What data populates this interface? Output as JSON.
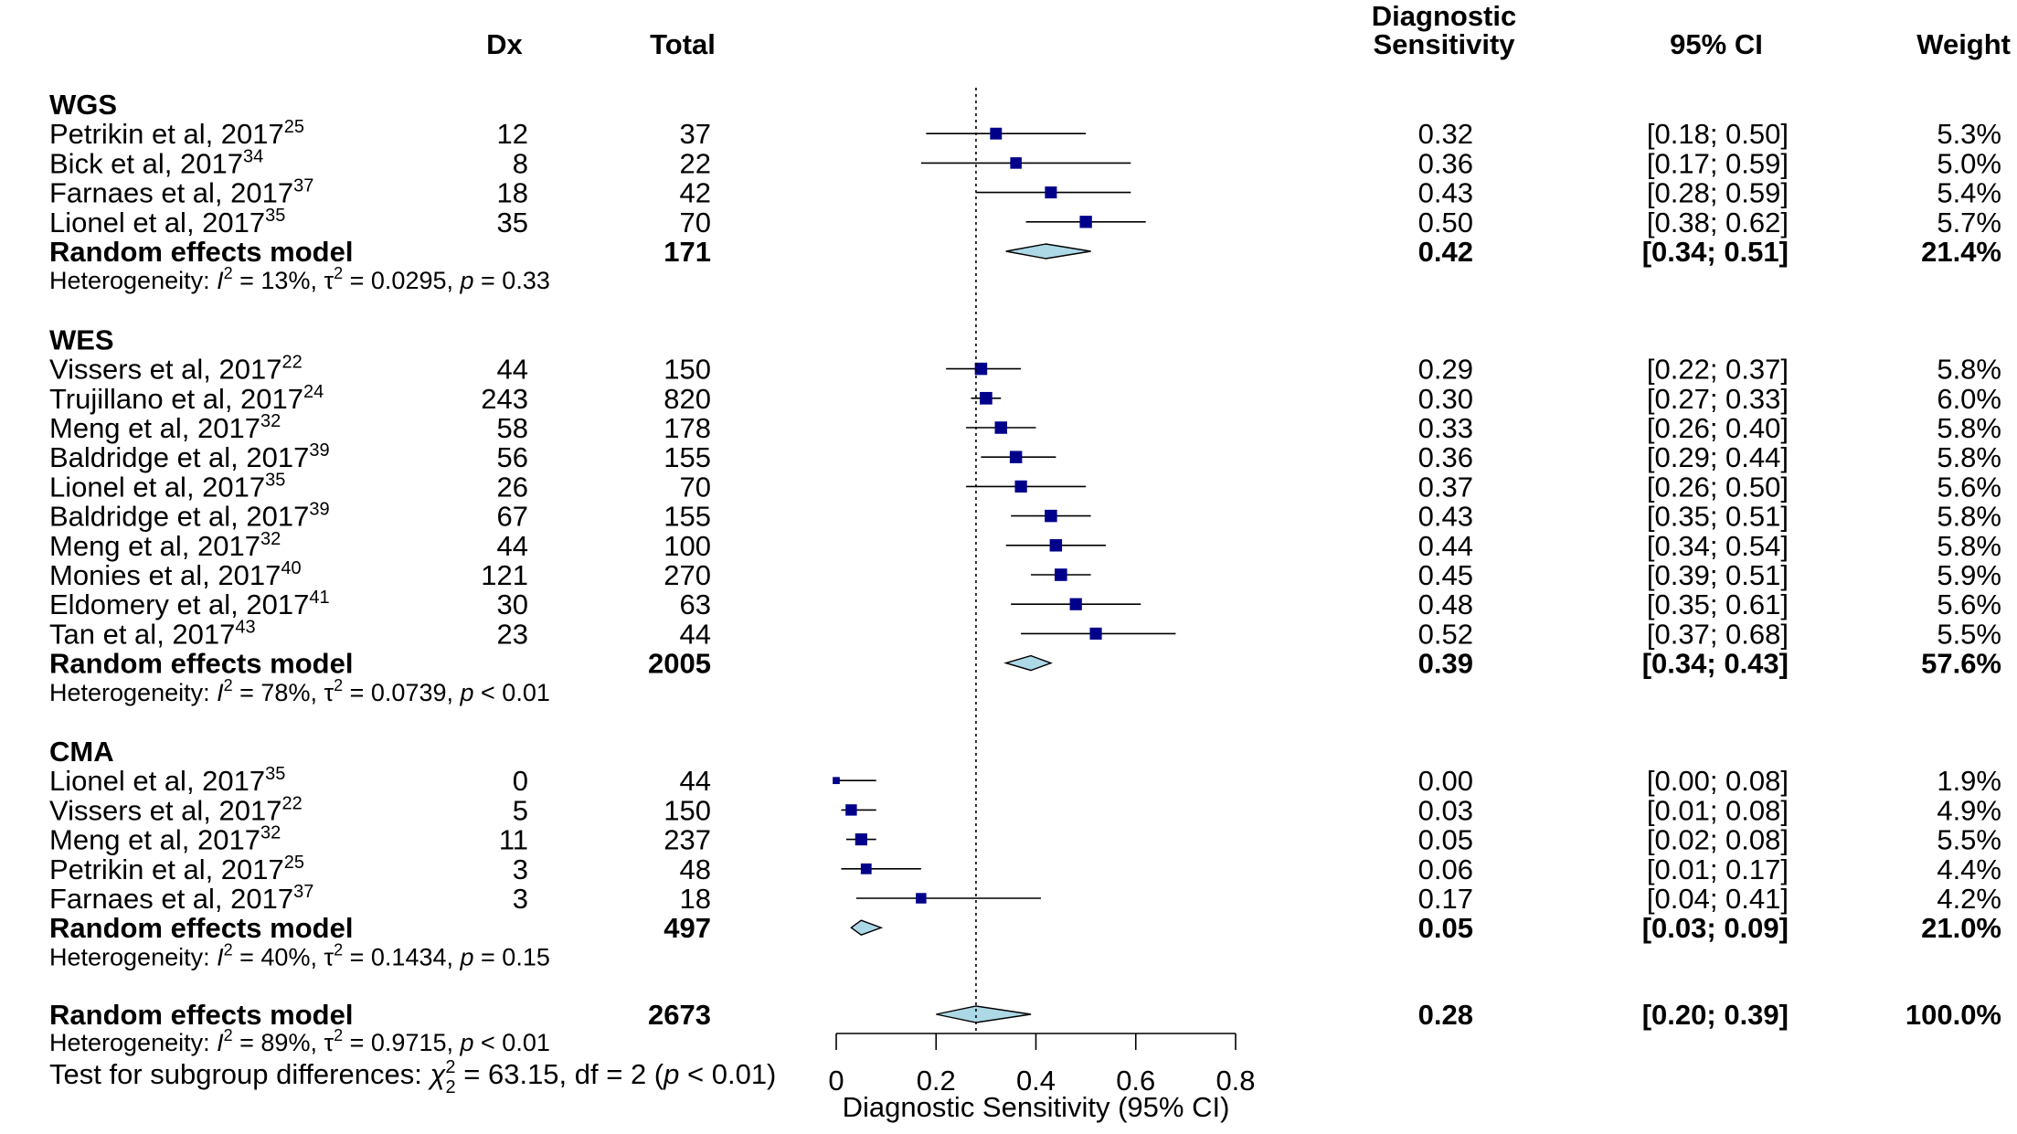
{
  "chart_data": {
    "type": "forest",
    "columns": {
      "dx": "Dx",
      "total": "Total",
      "estimate_line1": "Diagnostic",
      "estimate_line2": "Sensitivity",
      "ci": "95% CI",
      "weight": "Weight"
    },
    "xaxis": {
      "label": "Diagnostic Sensitivity (95% CI)",
      "ticks": [
        "0",
        "0.2",
        "0.4",
        "0.6",
        "0.8"
      ],
      "range": [
        0,
        0.8
      ]
    },
    "reference_value": 0.28,
    "marker_color": "#00008B",
    "diamond_color": "#ADD8E6",
    "groups": [
      {
        "name": "WGS",
        "studies": [
          {
            "author": "Petrikin et al, 2017",
            "ref": "25",
            "dx": "12",
            "total": "37",
            "est": "0.32",
            "ci": "[0.18; 0.50]",
            "weight": "5.3%",
            "e": 0.32,
            "lo": 0.18,
            "hi": 0.5,
            "w": 5.3
          },
          {
            "author": "Bick et al, 2017",
            "ref": "34",
            "dx": "8",
            "total": "22",
            "est": "0.36",
            "ci": "[0.17; 0.59]",
            "weight": "5.0%",
            "e": 0.36,
            "lo": 0.17,
            "hi": 0.59,
            "w": 5.0
          },
          {
            "author": "Farnaes et al, 2017",
            "ref": "37",
            "dx": "18",
            "total": "42",
            "est": "0.43",
            "ci": "[0.28; 0.59]",
            "weight": "5.4%",
            "e": 0.43,
            "lo": 0.28,
            "hi": 0.59,
            "w": 5.4
          },
          {
            "author": "Lionel et al, 2017",
            "ref": "35",
            "dx": "35",
            "total": "70",
            "est": "0.50",
            "ci": "[0.38; 0.62]",
            "weight": "5.7%",
            "e": 0.5,
            "lo": 0.38,
            "hi": 0.62,
            "w": 5.7
          }
        ],
        "model": {
          "label": "Random effects model",
          "total": "171",
          "est": "0.42",
          "ci": "[0.34; 0.51]",
          "weight": "21.4%",
          "e": 0.42,
          "lo": 0.34,
          "hi": 0.51
        },
        "het": {
          "prefix": "Heterogeneity: ",
          "i2": "13%",
          "tau2": "0.0295",
          "p": "= 0.33"
        }
      },
      {
        "name": "WES",
        "studies": [
          {
            "author": "Vissers et al, 2017",
            "ref": "22",
            "dx": "44",
            "total": "150",
            "est": "0.29",
            "ci": "[0.22; 0.37]",
            "weight": "5.8%",
            "e": 0.29,
            "lo": 0.22,
            "hi": 0.37,
            "w": 5.8
          },
          {
            "author": "Trujillano et al, 2017",
            "ref": "24",
            "dx": "243",
            "total": "820",
            "est": "0.30",
            "ci": "[0.27; 0.33]",
            "weight": "6.0%",
            "e": 0.3,
            "lo": 0.27,
            "hi": 0.33,
            "w": 6.0
          },
          {
            "author": "Meng et al, 2017",
            "ref": "32",
            "dx": "58",
            "total": "178",
            "est": "0.33",
            "ci": "[0.26; 0.40]",
            "weight": "5.8%",
            "e": 0.33,
            "lo": 0.26,
            "hi": 0.4,
            "w": 5.8
          },
          {
            "author": "Baldridge et al, 2017",
            "ref": "39",
            "dx": "56",
            "total": "155",
            "est": "0.36",
            "ci": "[0.29; 0.44]",
            "weight": "5.8%",
            "e": 0.36,
            "lo": 0.29,
            "hi": 0.44,
            "w": 5.8
          },
          {
            "author": "Lionel et al, 2017",
            "ref": "35",
            "dx": "26",
            "total": "70",
            "est": "0.37",
            "ci": "[0.26; 0.50]",
            "weight": "5.6%",
            "e": 0.37,
            "lo": 0.26,
            "hi": 0.5,
            "w": 5.6
          },
          {
            "author": "Baldridge et al, 2017",
            "ref": "39",
            "dx": "67",
            "total": "155",
            "est": "0.43",
            "ci": "[0.35; 0.51]",
            "weight": "5.8%",
            "e": 0.43,
            "lo": 0.35,
            "hi": 0.51,
            "w": 5.8
          },
          {
            "author": "Meng et al, 2017",
            "ref": "32",
            "dx": "44",
            "total": "100",
            "est": "0.44",
            "ci": "[0.34; 0.54]",
            "weight": "5.8%",
            "e": 0.44,
            "lo": 0.34,
            "hi": 0.54,
            "w": 5.8
          },
          {
            "author": "Monies et al, 2017",
            "ref": "40",
            "dx": "121",
            "total": "270",
            "est": "0.45",
            "ci": "[0.39; 0.51]",
            "weight": "5.9%",
            "e": 0.45,
            "lo": 0.39,
            "hi": 0.51,
            "w": 5.9
          },
          {
            "author": "Eldomery et al, 2017",
            "ref": "41",
            "dx": "30",
            "total": "63",
            "est": "0.48",
            "ci": "[0.35; 0.61]",
            "weight": "5.6%",
            "e": 0.48,
            "lo": 0.35,
            "hi": 0.61,
            "w": 5.6
          },
          {
            "author": "Tan et al, 2017",
            "ref": "43",
            "dx": "23",
            "total": "44",
            "est": "0.52",
            "ci": "[0.37; 0.68]",
            "weight": "5.5%",
            "e": 0.52,
            "lo": 0.37,
            "hi": 0.68,
            "w": 5.5
          }
        ],
        "model": {
          "label": "Random effects model",
          "total": "2005",
          "est": "0.39",
          "ci": "[0.34; 0.43]",
          "weight": "57.6%",
          "e": 0.39,
          "lo": 0.34,
          "hi": 0.43
        },
        "het": {
          "prefix": "Heterogeneity: ",
          "i2": "78%",
          "tau2": "0.0739",
          "p": "< 0.01"
        }
      },
      {
        "name": "CMA",
        "studies": [
          {
            "author": "Lionel et al, 2017",
            "ref": "35",
            "dx": "0",
            "total": "44",
            "est": "0.00",
            "ci": "[0.00; 0.08]",
            "weight": "1.9%",
            "e": 0.0,
            "lo": 0.0,
            "hi": 0.08,
            "w": 1.9
          },
          {
            "author": "Vissers et al, 2017",
            "ref": "22",
            "dx": "5",
            "total": "150",
            "est": "0.03",
            "ci": "[0.01; 0.08]",
            "weight": "4.9%",
            "e": 0.03,
            "lo": 0.01,
            "hi": 0.08,
            "w": 4.9
          },
          {
            "author": "Meng et al, 2017",
            "ref": "32",
            "dx": "11",
            "total": "237",
            "est": "0.05",
            "ci": "[0.02; 0.08]",
            "weight": "5.5%",
            "e": 0.05,
            "lo": 0.02,
            "hi": 0.08,
            "w": 5.5
          },
          {
            "author": "Petrikin et al, 2017",
            "ref": "25",
            "dx": "3",
            "total": "48",
            "est": "0.06",
            "ci": "[0.01; 0.17]",
            "weight": "4.4%",
            "e": 0.06,
            "lo": 0.01,
            "hi": 0.17,
            "w": 4.4
          },
          {
            "author": "Farnaes et al, 2017",
            "ref": "37",
            "dx": "3",
            "total": "18",
            "est": "0.17",
            "ci": "[0.04; 0.41]",
            "weight": "4.2%",
            "e": 0.17,
            "lo": 0.04,
            "hi": 0.41,
            "w": 4.2
          }
        ],
        "model": {
          "label": "Random effects model",
          "total": "497",
          "est": "0.05",
          "ci": "[0.03; 0.09]",
          "weight": "21.0%",
          "e": 0.05,
          "lo": 0.03,
          "hi": 0.09
        },
        "het": {
          "prefix": "Heterogeneity: ",
          "i2": "40%",
          "tau2": "0.1434",
          "p": "= 0.15"
        }
      }
    ],
    "overall": {
      "label": "Random effects model",
      "total": "2673",
      "est": "0.28",
      "ci": "[0.20; 0.39]",
      "weight": "100.0%",
      "e": 0.28,
      "lo": 0.2,
      "hi": 0.39,
      "het": {
        "prefix": "Heterogeneity: ",
        "i2": "89%",
        "tau2": "0.9715",
        "p": "< 0.01"
      },
      "subgroup_test": {
        "prefix": "Test for subgroup differences: ",
        "chi2": "= 63.15, df = 2 (",
        "p": "< 0.01)"
      }
    }
  }
}
